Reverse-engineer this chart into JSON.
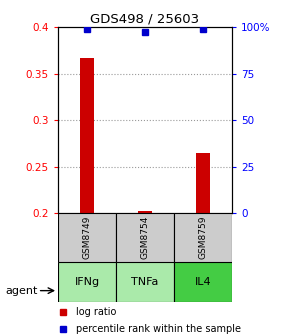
{
  "title": "GDS498 / 25603",
  "samples": [
    "GSM8749",
    "GSM8754",
    "GSM8759"
  ],
  "agents": [
    "IFNg",
    "TNFa",
    "IL4"
  ],
  "agent_colors": [
    "#aaeaaa",
    "#aaeaaa",
    "#44cc44"
  ],
  "log_ratios": [
    0.367,
    0.202,
    0.265
  ],
  "percentile_ranks": [
    99,
    97,
    99
  ],
  "ylim_left": [
    0.2,
    0.4
  ],
  "ylim_right": [
    0,
    100
  ],
  "yticks_left": [
    0.2,
    0.25,
    0.3,
    0.35,
    0.4
  ],
  "yticks_right": [
    0,
    25,
    50,
    75,
    100
  ],
  "ytick_labels_right": [
    "0",
    "25",
    "50",
    "75",
    "100%"
  ],
  "bar_color": "#cc0000",
  "dot_color": "#0000cc",
  "sample_box_color": "#cccccc",
  "legend_bar_label": "log ratio",
  "legend_dot_label": "percentile rank within the sample",
  "agent_label": "agent",
  "bar_width": 0.25
}
